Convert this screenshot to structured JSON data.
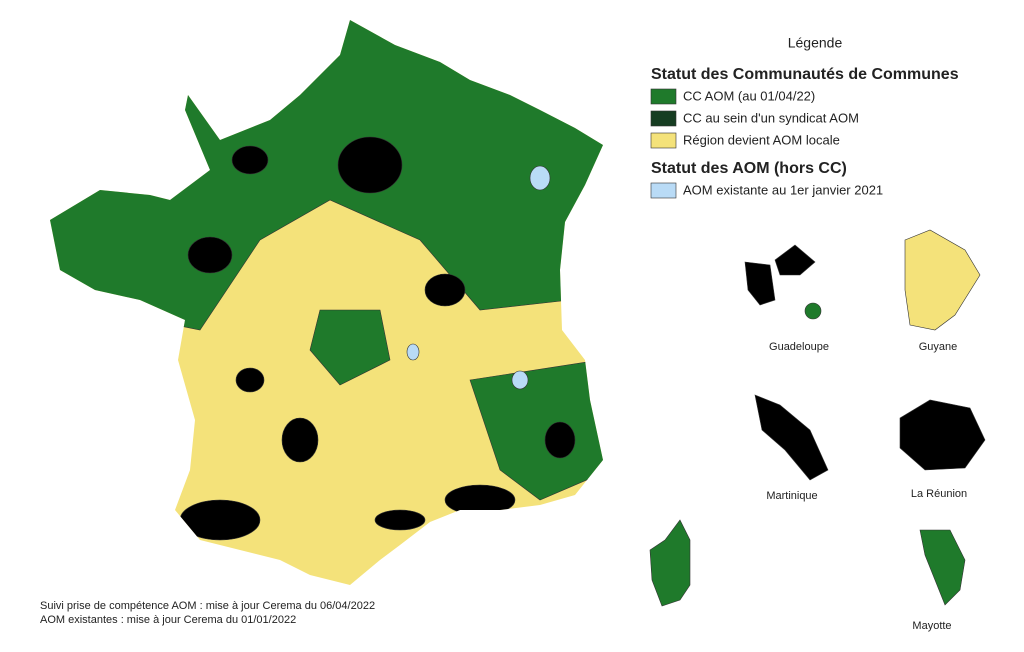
{
  "legend": {
    "title": "Légende",
    "sections": [
      {
        "heading": "Statut des Communautés de Communes",
        "items": [
          {
            "label": "CC AOM (au 01/04/22)",
            "color": "#1f7a2b"
          },
          {
            "label": "CC au sein d'un syndicat AOM",
            "color": "#163d22"
          },
          {
            "label": "Région devient AOM locale",
            "color": "#f4e27a"
          }
        ]
      },
      {
        "heading": "Statut des AOM (hors CC)",
        "items": [
          {
            "label": "AOM existante au 1er janvier 2021",
            "color": "#b9dbf6"
          }
        ]
      }
    ]
  },
  "territories": [
    {
      "label": "Guadeloupe"
    },
    {
      "label": "Guyane"
    },
    {
      "label": "Martinique"
    },
    {
      "label": "La Réunion"
    },
    {
      "label": "Mayotte"
    }
  ],
  "notes": [
    "Suivi prise de compétence AOM : mise à jour Cerema du 06/04/2022",
    "AOM existantes : mise à jour Cerema du 01/01/2022"
  ]
}
